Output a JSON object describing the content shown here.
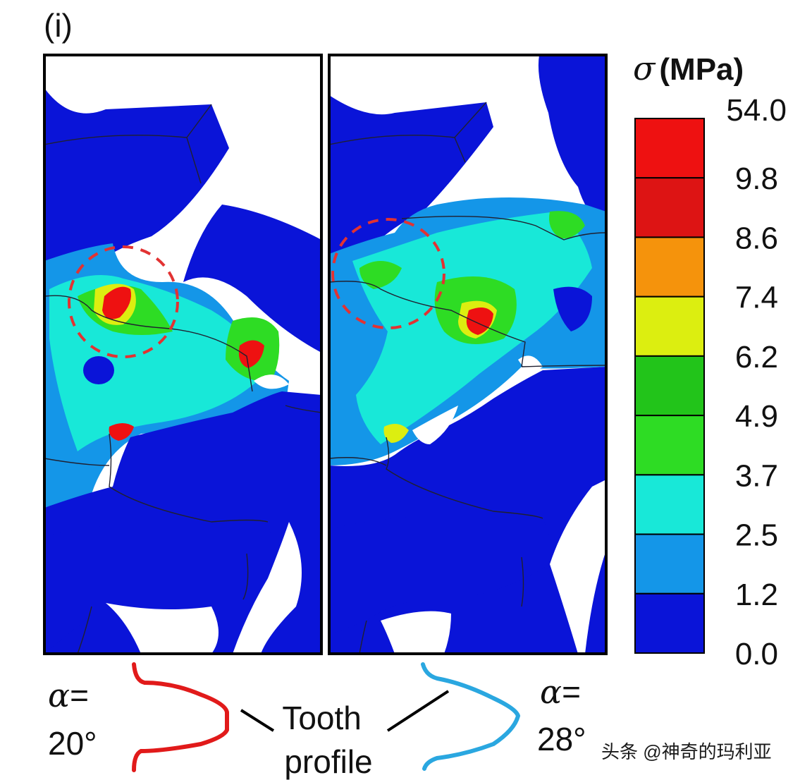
{
  "panel_label": "(i)",
  "colorbar": {
    "symbol": "σ",
    "unit": "(MPa)",
    "ticks": [
      "54.0",
      "9.8",
      "8.6",
      "7.4",
      "6.2",
      "4.9",
      "3.7",
      "2.5",
      "1.2",
      "0.0"
    ],
    "colors": [
      "#ee1111",
      "#dd1414",
      "#f5930c",
      "#dcee10",
      "#22c41a",
      "#2edc24",
      "#18e8d8",
      "#1496e8",
      "#0a14d8"
    ]
  },
  "left_panel": {
    "alpha_symbol": "α",
    "alpha_eq": "=",
    "alpha_value": "20°",
    "profile_color": "#e11a1a"
  },
  "right_panel": {
    "alpha_symbol": "α",
    "alpha_eq": "=",
    "alpha_value": "28°",
    "profile_color": "#2aa7e0"
  },
  "tooth_profile": {
    "line1": "Tooth",
    "line2": "profile"
  },
  "watermark": "头条 @神奇的玛利亚"
}
